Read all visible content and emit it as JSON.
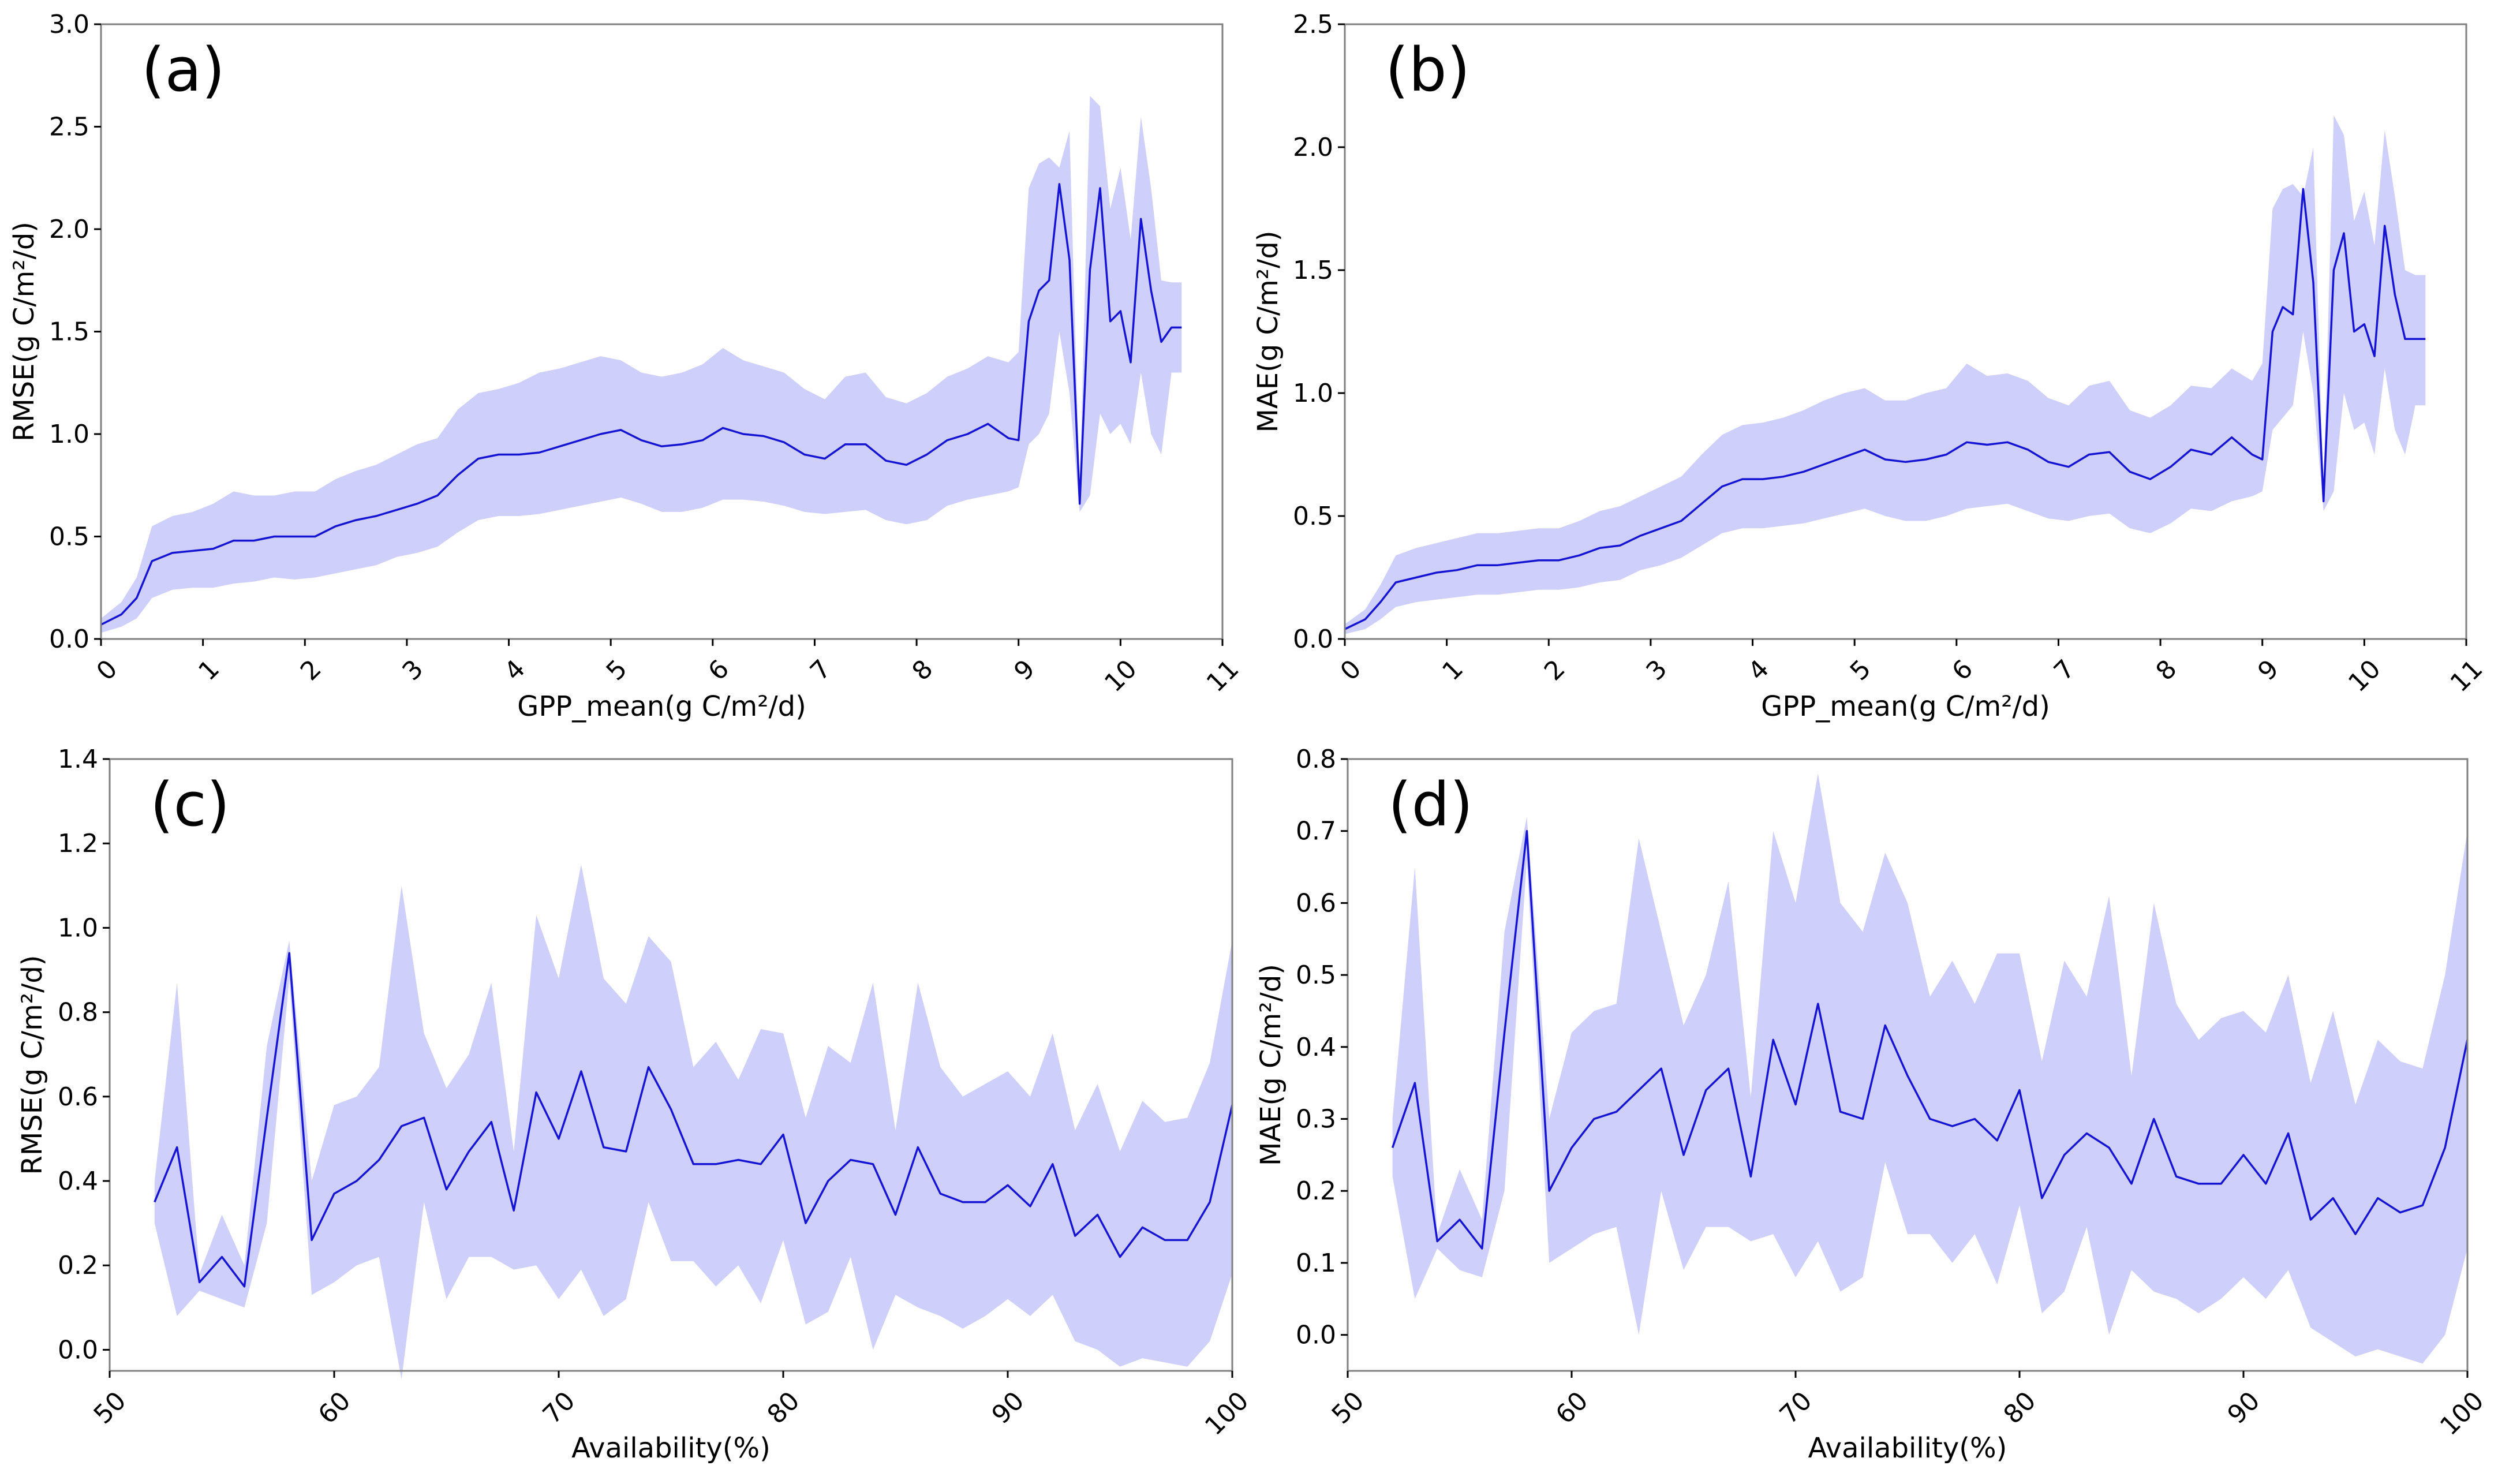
{
  "colors": {
    "line": "#1414d2",
    "band": "#cfcffb",
    "frame": "#7f7f7f"
  },
  "chart_data": [
    {
      "type": "line",
      "panel_label": "(a)",
      "xlabel": "GPP_mean(g C/m²/d)",
      "ylabel": "RMSE(g C/m²/d)",
      "xlim": [
        0,
        11
      ],
      "ylim": [
        0,
        3.0
      ],
      "xticks": [
        0,
        1,
        2,
        3,
        4,
        5,
        6,
        7,
        8,
        9,
        10,
        11
      ],
      "xtick_labels": [
        "0",
        "1",
        "2",
        "3",
        "4",
        "5",
        "6",
        "7",
        "8",
        "9",
        "10",
        "11"
      ],
      "yticks": [
        0,
        0.5,
        1.0,
        1.5,
        2.0,
        2.5,
        3.0
      ],
      "ytick_labels": [
        "0.0",
        "0.5",
        "1.0",
        "1.5",
        "2.0",
        "2.5",
        "3.0"
      ],
      "series": [
        {
          "name": "mean",
          "x": [
            0,
            0.2,
            0.35,
            0.5,
            0.7,
            0.9,
            1.1,
            1.3,
            1.5,
            1.7,
            1.9,
            2.1,
            2.3,
            2.5,
            2.7,
            2.9,
            3.1,
            3.3,
            3.5,
            3.7,
            3.9,
            4.1,
            4.3,
            4.5,
            4.7,
            4.9,
            5.1,
            5.3,
            5.5,
            5.7,
            5.9,
            6.1,
            6.3,
            6.5,
            6.7,
            6.9,
            7.1,
            7.3,
            7.5,
            7.7,
            7.9,
            8.1,
            8.3,
            8.5,
            8.7,
            8.9,
            9.0,
            9.1,
            9.2,
            9.3,
            9.4,
            9.5,
            9.6,
            9.7,
            9.8,
            9.9,
            10.0,
            10.1,
            10.2,
            10.3,
            10.4,
            10.5,
            10.6
          ],
          "y": [
            0.07,
            0.12,
            0.2,
            0.38,
            0.42,
            0.43,
            0.44,
            0.48,
            0.48,
            0.5,
            0.5,
            0.5,
            0.55,
            0.58,
            0.6,
            0.63,
            0.66,
            0.7,
            0.8,
            0.88,
            0.9,
            0.9,
            0.91,
            0.94,
            0.97,
            1.0,
            1.02,
            0.97,
            0.94,
            0.95,
            0.97,
            1.03,
            1.0,
            0.99,
            0.96,
            0.9,
            0.88,
            0.95,
            0.95,
            0.87,
            0.85,
            0.9,
            0.97,
            1.0,
            1.05,
            0.98,
            0.97,
            1.55,
            1.7,
            1.75,
            2.22,
            1.85,
            0.66,
            1.8,
            2.2,
            1.55,
            1.6,
            1.35,
            2.05,
            1.7,
            1.45,
            1.52,
            1.52
          ],
          "lower": [
            0.03,
            0.06,
            0.1,
            0.2,
            0.24,
            0.25,
            0.25,
            0.27,
            0.28,
            0.3,
            0.29,
            0.3,
            0.32,
            0.34,
            0.36,
            0.4,
            0.42,
            0.45,
            0.52,
            0.58,
            0.6,
            0.6,
            0.61,
            0.63,
            0.65,
            0.67,
            0.69,
            0.66,
            0.62,
            0.62,
            0.64,
            0.68,
            0.68,
            0.67,
            0.65,
            0.62,
            0.61,
            0.62,
            0.63,
            0.58,
            0.56,
            0.58,
            0.65,
            0.68,
            0.7,
            0.72,
            0.74,
            0.95,
            1.0,
            1.1,
            1.5,
            1.2,
            0.62,
            0.7,
            1.1,
            1.0,
            1.05,
            0.95,
            1.3,
            1.0,
            0.9,
            1.3,
            1.3
          ],
          "upper": [
            0.1,
            0.18,
            0.3,
            0.55,
            0.6,
            0.62,
            0.66,
            0.72,
            0.7,
            0.7,
            0.72,
            0.72,
            0.78,
            0.82,
            0.85,
            0.9,
            0.95,
            0.98,
            1.12,
            1.2,
            1.22,
            1.25,
            1.3,
            1.32,
            1.35,
            1.38,
            1.36,
            1.3,
            1.28,
            1.3,
            1.34,
            1.42,
            1.36,
            1.33,
            1.3,
            1.22,
            1.17,
            1.28,
            1.3,
            1.18,
            1.15,
            1.2,
            1.28,
            1.32,
            1.38,
            1.35,
            1.4,
            2.2,
            2.32,
            2.35,
            2.3,
            2.48,
            0.72,
            2.65,
            2.6,
            2.1,
            2.3,
            1.95,
            2.55,
            2.2,
            1.75,
            1.74,
            1.74
          ]
        }
      ]
    },
    {
      "type": "line",
      "panel_label": "(b)",
      "xlabel": "GPP_mean(g C/m²/d)",
      "ylabel": "MAE(g C/m²/d)",
      "xlim": [
        0,
        11
      ],
      "ylim": [
        0,
        2.5
      ],
      "xticks": [
        0,
        1,
        2,
        3,
        4,
        5,
        6,
        7,
        8,
        9,
        10,
        11
      ],
      "xtick_labels": [
        "0",
        "1",
        "2",
        "3",
        "4",
        "5",
        "6",
        "7",
        "8",
        "9",
        "10",
        "11"
      ],
      "yticks": [
        0,
        0.5,
        1.0,
        1.5,
        2.0,
        2.5
      ],
      "ytick_labels": [
        "0.0",
        "0.5",
        "1.0",
        "1.5",
        "2.0",
        "2.5"
      ],
      "series": [
        {
          "name": "mean",
          "x": [
            0,
            0.2,
            0.35,
            0.5,
            0.7,
            0.9,
            1.1,
            1.3,
            1.5,
            1.7,
            1.9,
            2.1,
            2.3,
            2.5,
            2.7,
            2.9,
            3.1,
            3.3,
            3.5,
            3.7,
            3.9,
            4.1,
            4.3,
            4.5,
            4.7,
            4.9,
            5.1,
            5.3,
            5.5,
            5.7,
            5.9,
            6.1,
            6.3,
            6.5,
            6.7,
            6.9,
            7.1,
            7.3,
            7.5,
            7.7,
            7.9,
            8.1,
            8.3,
            8.5,
            8.7,
            8.9,
            9.0,
            9.1,
            9.2,
            9.3,
            9.4,
            9.5,
            9.6,
            9.7,
            9.8,
            9.9,
            10.0,
            10.1,
            10.2,
            10.3,
            10.4,
            10.5,
            10.6
          ],
          "y": [
            0.04,
            0.08,
            0.15,
            0.23,
            0.25,
            0.27,
            0.28,
            0.3,
            0.3,
            0.31,
            0.32,
            0.32,
            0.34,
            0.37,
            0.38,
            0.42,
            0.45,
            0.48,
            0.55,
            0.62,
            0.65,
            0.65,
            0.66,
            0.68,
            0.71,
            0.74,
            0.77,
            0.73,
            0.72,
            0.73,
            0.75,
            0.8,
            0.79,
            0.8,
            0.77,
            0.72,
            0.7,
            0.75,
            0.76,
            0.68,
            0.65,
            0.7,
            0.77,
            0.75,
            0.82,
            0.75,
            0.73,
            1.25,
            1.35,
            1.32,
            1.83,
            1.45,
            0.56,
            1.5,
            1.65,
            1.25,
            1.28,
            1.15,
            1.68,
            1.4,
            1.22,
            1.22,
            1.22
          ],
          "lower": [
            0.02,
            0.04,
            0.08,
            0.13,
            0.15,
            0.16,
            0.17,
            0.18,
            0.18,
            0.19,
            0.2,
            0.2,
            0.21,
            0.23,
            0.24,
            0.28,
            0.3,
            0.33,
            0.38,
            0.43,
            0.45,
            0.45,
            0.46,
            0.47,
            0.49,
            0.51,
            0.53,
            0.5,
            0.48,
            0.48,
            0.5,
            0.53,
            0.54,
            0.55,
            0.52,
            0.49,
            0.48,
            0.5,
            0.51,
            0.45,
            0.43,
            0.47,
            0.53,
            0.52,
            0.56,
            0.58,
            0.6,
            0.85,
            0.9,
            0.95,
            1.25,
            1.0,
            0.52,
            0.6,
            1.0,
            0.85,
            0.88,
            0.75,
            1.1,
            0.85,
            0.75,
            0.95,
            0.95
          ],
          "upper": [
            0.06,
            0.12,
            0.22,
            0.34,
            0.37,
            0.39,
            0.41,
            0.43,
            0.43,
            0.44,
            0.45,
            0.45,
            0.48,
            0.52,
            0.54,
            0.58,
            0.62,
            0.66,
            0.75,
            0.83,
            0.87,
            0.88,
            0.9,
            0.93,
            0.97,
            1.0,
            1.02,
            0.97,
            0.97,
            1.0,
            1.02,
            1.12,
            1.07,
            1.08,
            1.05,
            0.98,
            0.95,
            1.03,
            1.05,
            0.93,
            0.9,
            0.95,
            1.03,
            1.02,
            1.1,
            1.05,
            1.12,
            1.75,
            1.83,
            1.85,
            1.8,
            2.0,
            0.6,
            2.13,
            2.05,
            1.7,
            1.82,
            1.6,
            2.07,
            1.8,
            1.5,
            1.48,
            1.48
          ]
        }
      ]
    },
    {
      "type": "line",
      "panel_label": "(c)",
      "xlabel": "Availability(%)",
      "ylabel": "RMSE(g C/m²/d)",
      "xlim": [
        50,
        100
      ],
      "ylim": [
        -0.05,
        1.4
      ],
      "xticks": [
        50,
        60,
        70,
        80,
        90,
        100
      ],
      "xtick_labels": [
        "50",
        "60",
        "70",
        "80",
        "90",
        "100"
      ],
      "yticks": [
        0,
        0.2,
        0.4,
        0.6,
        0.8,
        1.0,
        1.2,
        1.4
      ],
      "ytick_labels": [
        "0.0",
        "0.2",
        "0.4",
        "0.6",
        "0.8",
        "1.0",
        "1.2",
        "1.4"
      ],
      "series": [
        {
          "name": "mean",
          "x": [
            52,
            53,
            54,
            55,
            56,
            57,
            58,
            59,
            60,
            61,
            62,
            63,
            64,
            65,
            66,
            67,
            68,
            69,
            70,
            71,
            72,
            73,
            74,
            75,
            76,
            77,
            78,
            79,
            80,
            81,
            82,
            83,
            84,
            85,
            86,
            87,
            88,
            89,
            90,
            91,
            92,
            93,
            94,
            95,
            96,
            97,
            98,
            99,
            100
          ],
          "y": [
            0.35,
            0.48,
            0.16,
            0.22,
            0.15,
            0.55,
            0.94,
            0.26,
            0.37,
            0.4,
            0.45,
            0.53,
            0.55,
            0.38,
            0.47,
            0.54,
            0.33,
            0.61,
            0.5,
            0.66,
            0.48,
            0.47,
            0.67,
            0.57,
            0.44,
            0.44,
            0.45,
            0.44,
            0.51,
            0.3,
            0.4,
            0.45,
            0.44,
            0.32,
            0.48,
            0.37,
            0.35,
            0.35,
            0.39,
            0.34,
            0.44,
            0.27,
            0.32,
            0.22,
            0.29,
            0.26,
            0.26,
            0.35,
            0.58
          ],
          "lower": [
            0.3,
            0.08,
            0.14,
            0.12,
            0.1,
            0.3,
            0.88,
            0.13,
            0.16,
            0.2,
            0.22,
            -0.07,
            0.35,
            0.12,
            0.22,
            0.22,
            0.19,
            0.2,
            0.12,
            0.19,
            0.08,
            0.12,
            0.35,
            0.21,
            0.21,
            0.15,
            0.2,
            0.11,
            0.26,
            0.06,
            0.09,
            0.22,
            0.0,
            0.13,
            0.1,
            0.08,
            0.05,
            0.08,
            0.12,
            0.08,
            0.13,
            0.02,
            0.0,
            -0.04,
            -0.02,
            -0.03,
            -0.04,
            0.02,
            0.18
          ],
          "upper": [
            0.4,
            0.87,
            0.18,
            0.32,
            0.2,
            0.72,
            0.97,
            0.4,
            0.58,
            0.6,
            0.67,
            1.1,
            0.75,
            0.62,
            0.7,
            0.87,
            0.47,
            1.03,
            0.88,
            1.15,
            0.88,
            0.82,
            0.98,
            0.92,
            0.67,
            0.73,
            0.64,
            0.76,
            0.75,
            0.55,
            0.72,
            0.68,
            0.87,
            0.52,
            0.87,
            0.67,
            0.6,
            0.63,
            0.66,
            0.6,
            0.75,
            0.52,
            0.63,
            0.47,
            0.59,
            0.54,
            0.55,
            0.68,
            0.97
          ]
        }
      ]
    },
    {
      "type": "line",
      "panel_label": "(d)",
      "xlabel": "Availability(%)",
      "ylabel": "MAE(g C/m²/d)",
      "xlim": [
        50,
        100
      ],
      "ylim": [
        -0.05,
        0.8
      ],
      "xticks": [
        50,
        60,
        70,
        80,
        90,
        100
      ],
      "xtick_labels": [
        "50",
        "60",
        "70",
        "80",
        "90",
        "100"
      ],
      "yticks": [
        0,
        0.1,
        0.2,
        0.3,
        0.4,
        0.5,
        0.6,
        0.7,
        0.8
      ],
      "ytick_labels": [
        "0.0",
        "0.1",
        "0.2",
        "0.3",
        "0.4",
        "0.5",
        "0.6",
        "0.7",
        "0.8"
      ],
      "series": [
        {
          "name": "mean",
          "x": [
            52,
            53,
            54,
            55,
            56,
            57,
            58,
            59,
            60,
            61,
            62,
            63,
            64,
            65,
            66,
            67,
            68,
            69,
            70,
            71,
            72,
            73,
            74,
            75,
            76,
            77,
            78,
            79,
            80,
            81,
            82,
            83,
            84,
            85,
            86,
            87,
            88,
            89,
            90,
            91,
            92,
            93,
            94,
            95,
            96,
            97,
            98,
            99,
            100
          ],
          "y": [
            0.26,
            0.35,
            0.13,
            0.16,
            0.12,
            0.42,
            0.7,
            0.2,
            0.26,
            0.3,
            0.31,
            0.34,
            0.37,
            0.25,
            0.34,
            0.37,
            0.22,
            0.41,
            0.32,
            0.46,
            0.31,
            0.3,
            0.43,
            0.36,
            0.3,
            0.29,
            0.3,
            0.27,
            0.34,
            0.19,
            0.25,
            0.28,
            0.26,
            0.21,
            0.3,
            0.22,
            0.21,
            0.21,
            0.25,
            0.21,
            0.28,
            0.16,
            0.19,
            0.14,
            0.19,
            0.17,
            0.18,
            0.26,
            0.41
          ],
          "lower": [
            0.22,
            0.05,
            0.12,
            0.09,
            0.08,
            0.2,
            0.66,
            0.1,
            0.12,
            0.14,
            0.15,
            0.0,
            0.2,
            0.09,
            0.15,
            0.15,
            0.13,
            0.14,
            0.08,
            0.13,
            0.06,
            0.08,
            0.24,
            0.14,
            0.14,
            0.1,
            0.14,
            0.07,
            0.18,
            0.03,
            0.06,
            0.15,
            0.0,
            0.09,
            0.06,
            0.05,
            0.03,
            0.05,
            0.08,
            0.05,
            0.09,
            0.01,
            -0.01,
            -0.03,
            -0.02,
            -0.03,
            -0.04,
            0.0,
            0.12
          ],
          "upper": [
            0.3,
            0.65,
            0.14,
            0.23,
            0.16,
            0.56,
            0.72,
            0.3,
            0.42,
            0.45,
            0.46,
            0.69,
            0.56,
            0.43,
            0.5,
            0.63,
            0.33,
            0.7,
            0.6,
            0.78,
            0.6,
            0.56,
            0.67,
            0.6,
            0.47,
            0.52,
            0.46,
            0.53,
            0.53,
            0.38,
            0.52,
            0.47,
            0.61,
            0.36,
            0.6,
            0.46,
            0.41,
            0.44,
            0.45,
            0.42,
            0.5,
            0.35,
            0.45,
            0.32,
            0.41,
            0.38,
            0.37,
            0.5,
            0.7
          ]
        }
      ]
    }
  ]
}
